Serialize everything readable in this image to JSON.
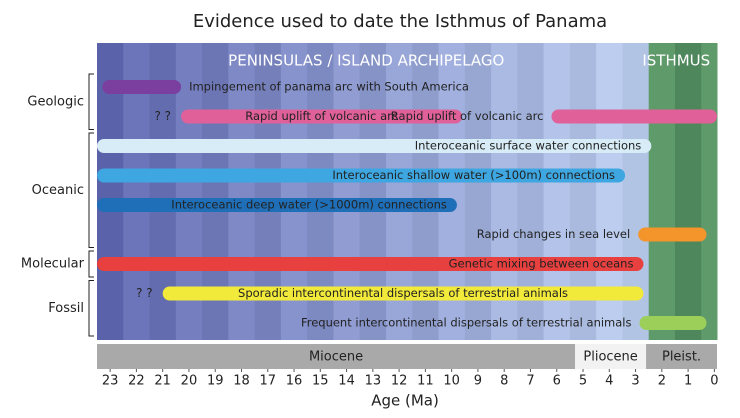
{
  "chart_data": {
    "type": "timeline",
    "title": "Evidence used to date the Isthmus of Panama",
    "x_label": "Age (Ma)",
    "xlim": [
      23.5,
      -0.1
    ],
    "xticks": [
      23,
      22,
      21,
      20,
      19,
      18,
      17,
      16,
      15,
      14,
      13,
      12,
      11,
      10,
      9,
      8,
      7,
      6,
      5,
      4,
      3,
      2,
      1,
      0
    ],
    "regions": [
      {
        "label": "PENINSULAS / ISLAND ARCHIPELAGO",
        "start": 23.5,
        "end": 3
      },
      {
        "label": "ISTHMUS",
        "start": 3,
        "end": -0.1
      }
    ],
    "epochs": [
      {
        "name": "Miocene",
        "start": 23.5,
        "end": 5.3,
        "color": "#a9a9a9"
      },
      {
        "name": "Pliocene",
        "start": 5.3,
        "end": 2.6,
        "color": "#f2f2f2"
      },
      {
        "name": "Pleist.",
        "start": 2.6,
        "end": -0.1,
        "color": "#a9a9a9"
      }
    ],
    "groups": [
      {
        "name": "Geologic",
        "rows": [
          {
            "color": "#7b3fa0",
            "bars": [
              {
                "label": "Impingement of panama arc with South America",
                "start": 23.3,
                "end": 20.3
              }
            ]
          },
          {
            "color": "#e0609a",
            "bars": [
              {
                "prefix": "? ?",
                "label": "Rapid uplift of volcanic arc",
                "start": 20.3,
                "end": 9.6
              },
              {
                "label": "Rapid uplift of volcanic arc",
                "start": 6.2,
                "end": -0.1
              }
            ]
          }
        ]
      },
      {
        "name": "Oceanic",
        "rows": [
          {
            "color": "#d8ecf7",
            "bars": [
              {
                "label": "Interoceanic surface water connections",
                "start": 23.5,
                "end": 2.4
              }
            ]
          },
          {
            "color": "#3ea6e0",
            "bars": [
              {
                "label": "Interoceanic shallow water (>100m) connections",
                "start": 23.5,
                "end": 3.4
              }
            ]
          },
          {
            "color": "#1f6fb8",
            "bars": [
              {
                "label": "Interoceanic deep water (>1000m) connections",
                "start": 23.5,
                "end": 9.8
              }
            ]
          },
          {
            "color": "#f3952a",
            "bars": [
              {
                "label": "Rapid changes in sea level",
                "start": 2.9,
                "end": 0.3
              }
            ]
          }
        ]
      },
      {
        "name": "Molecular",
        "rows": [
          {
            "color": "#e8403f",
            "bars": [
              {
                "label": "Genetic mixing between oceans",
                "start": 23.5,
                "end": 2.7
              }
            ]
          }
        ]
      },
      {
        "name": "Fossil",
        "rows": [
          {
            "color": "#f2ea3a",
            "bars": [
              {
                "prefix": "? ?",
                "label": "Sporadic intercontinental dispersals of terrestrial animals",
                "start": 21.0,
                "end": 2.7
              }
            ]
          },
          {
            "color": "#9ccf5a",
            "bars": [
              {
                "label": "Frequent intercontinental dispersals of terrestrial animals",
                "start": 2.85,
                "end": 0.3
              }
            ]
          }
        ]
      }
    ]
  }
}
